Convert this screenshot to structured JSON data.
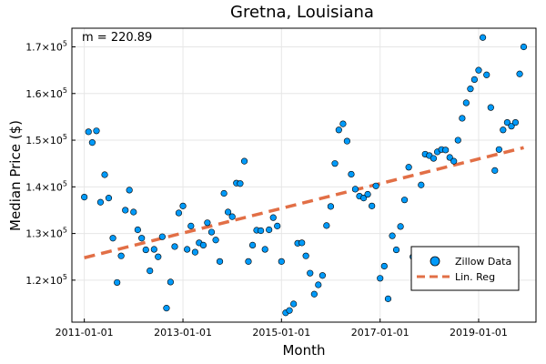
{
  "chart_data": {
    "type": "scatter",
    "title": "Gretna, Louisiana",
    "xlabel": "Month",
    "ylabel": "Median Price ($)",
    "annotation": "m = 220.89",
    "x_ticks": [
      "2011-01-01",
      "2013-01-01",
      "2015-01-01",
      "2017-01-01",
      "2019-01-01"
    ],
    "y_ticks": [
      {
        "value": 120000,
        "mantissa": "1.2",
        "exp": "5"
      },
      {
        "value": 130000,
        "mantissa": "1.3",
        "exp": "5"
      },
      {
        "value": 140000,
        "mantissa": "1.4",
        "exp": "5"
      },
      {
        "value": 150000,
        "mantissa": "1.5",
        "exp": "5"
      },
      {
        "value": 160000,
        "mantissa": "1.6",
        "exp": "5"
      },
      {
        "value": 170000,
        "mantissa": "1.7",
        "exp": "5"
      }
    ],
    "tick_base": "10",
    "xlim": [
      "2010-10-01",
      "2020-03-01"
    ],
    "ylim": [
      111000,
      174000
    ],
    "grid": true,
    "legend_position": "bottom-right",
    "series": [
      {
        "name": "Zillow Data",
        "type": "scatter",
        "color": "#009af9",
        "x": [
          "2011-01-01",
          "2011-02-01",
          "2011-03-01",
          "2011-04-01",
          "2011-05-01",
          "2011-06-01",
          "2011-07-01",
          "2011-08-01",
          "2011-09-01",
          "2011-10-01",
          "2011-11-01",
          "2011-12-01",
          "2012-01-01",
          "2012-02-01",
          "2012-03-01",
          "2012-04-01",
          "2012-05-01",
          "2012-06-01",
          "2012-07-01",
          "2012-08-01",
          "2012-09-01",
          "2012-10-01",
          "2012-11-01",
          "2012-12-01",
          "2013-01-01",
          "2013-02-01",
          "2013-03-01",
          "2013-04-01",
          "2013-05-01",
          "2013-06-01",
          "2013-07-01",
          "2013-08-01",
          "2013-09-01",
          "2013-10-01",
          "2013-11-01",
          "2013-12-01",
          "2014-01-01",
          "2014-02-01",
          "2014-03-01",
          "2014-04-01",
          "2014-05-01",
          "2014-06-01",
          "2014-07-01",
          "2014-08-01",
          "2014-09-01",
          "2014-10-01",
          "2014-11-01",
          "2014-12-01",
          "2015-01-01",
          "2015-02-01",
          "2015-03-01",
          "2015-04-01",
          "2015-05-01",
          "2015-06-01",
          "2015-07-01",
          "2015-08-01",
          "2015-09-01",
          "2015-10-01",
          "2015-11-01",
          "2015-12-01",
          "2016-01-01",
          "2016-02-01",
          "2016-03-01",
          "2016-04-01",
          "2016-05-01",
          "2016-06-01",
          "2016-07-01",
          "2016-08-01",
          "2016-09-01",
          "2016-10-01",
          "2016-11-01",
          "2016-12-01",
          "2017-01-01",
          "2017-02-01",
          "2017-03-01",
          "2017-04-01",
          "2017-05-01",
          "2017-06-01",
          "2017-07-01",
          "2017-08-01",
          "2017-09-01",
          "2017-10-01",
          "2017-11-01",
          "2017-12-01",
          "2018-01-01",
          "2018-02-01",
          "2018-03-01",
          "2018-04-01",
          "2018-05-01",
          "2018-06-01",
          "2018-07-01",
          "2018-08-01",
          "2018-09-01",
          "2018-10-01",
          "2018-11-01",
          "2018-12-01",
          "2019-01-01",
          "2019-02-01",
          "2019-03-01",
          "2019-04-01",
          "2019-05-01",
          "2019-06-01",
          "2019-07-01",
          "2019-08-01",
          "2019-09-01",
          "2019-10-01",
          "2019-11-01",
          "2019-12-01"
        ],
        "y": [
          137800,
          151800,
          149500,
          152000,
          136700,
          142600,
          137600,
          129000,
          119500,
          125200,
          135000,
          139300,
          134600,
          130800,
          129000,
          126500,
          122000,
          126600,
          125000,
          129300,
          114000,
          119600,
          127200,
          134400,
          135900,
          126600,
          131600,
          126000,
          128000,
          127500,
          132300,
          130300,
          128600,
          124000,
          138600,
          134600,
          133600,
          140800,
          140700,
          145500,
          124000,
          127500,
          130700,
          130600,
          126600,
          130800,
          133400,
          131600,
          124000,
          113000,
          113500,
          114900,
          127900,
          128000,
          125200,
          121500,
          117000,
          119000,
          121000,
          131700,
          135800,
          145000,
          152200,
          153500,
          149800,
          142700,
          139500,
          138000,
          137600,
          138400,
          135900,
          140200,
          120400,
          123000,
          116000,
          129500,
          126500,
          131500,
          137200,
          144200,
          125000,
          121500,
          140400,
          147000,
          146700,
          146100,
          147500,
          148000,
          147900,
          146300,
          145500,
          150000,
          154700,
          158000,
          161000,
          163000,
          165000,
          172000,
          164000,
          157000,
          143500,
          148000,
          152200,
          153800,
          153000,
          153800,
          164200,
          170000
        ]
      },
      {
        "name": "Lin. Reg",
        "type": "line",
        "color": "#e26f46",
        "x": [
          "2011-01-01",
          "2019-12-01"
        ],
        "y": [
          124800,
          148400
        ]
      }
    ]
  }
}
